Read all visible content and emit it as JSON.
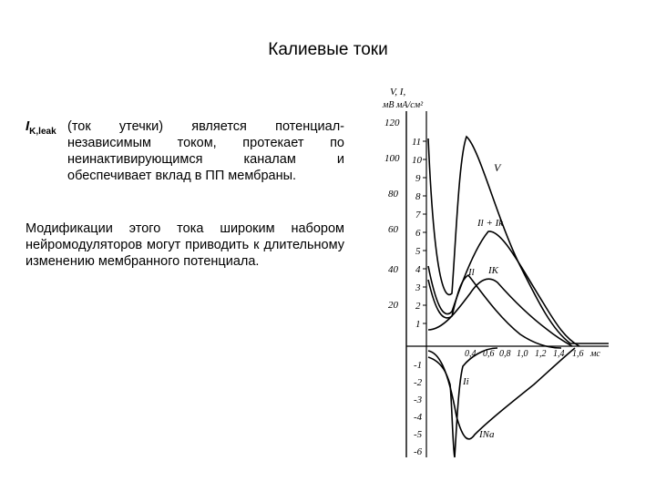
{
  "title": "Калиевые токи",
  "paragraph1": {
    "symbol_main": "I",
    "symbol_sub": "K,leak",
    "text": "(ток утечки) является потенциал-независимым током, протекает по неинактивирующимся каналам и обеспечивает вклад в ПП мембраны."
  },
  "paragraph2": {
    "text": "Модификации этого тока широким набором нейромодуляторов могут приводить к длительному изменению мембранного потенциала."
  },
  "figure": {
    "axis_header_line1": "V,  I,",
    "axis_header_line2": "мВ мА/см²",
    "v_ticks": [
      "120",
      "100",
      "80",
      "60",
      "40",
      "20"
    ],
    "i_ticks_pos": [
      "11",
      "10",
      "9",
      "8",
      "7",
      "6",
      "5",
      "4",
      "3",
      "2",
      "1"
    ],
    "i_ticks_neg": [
      "-1",
      "-2",
      "-3",
      "-4",
      "-5",
      "-6"
    ],
    "t_ticks": [
      "0,4",
      "0,6",
      "0,8",
      "1,0",
      "1,2",
      "1,4",
      "1,6"
    ],
    "t_unit": "мс",
    "curve_labels": {
      "v": "V",
      "il_ik": "Il + Ik",
      "il": "Il",
      "ik": "IK",
      "ii": "Ii",
      "ina": "INa"
    }
  }
}
